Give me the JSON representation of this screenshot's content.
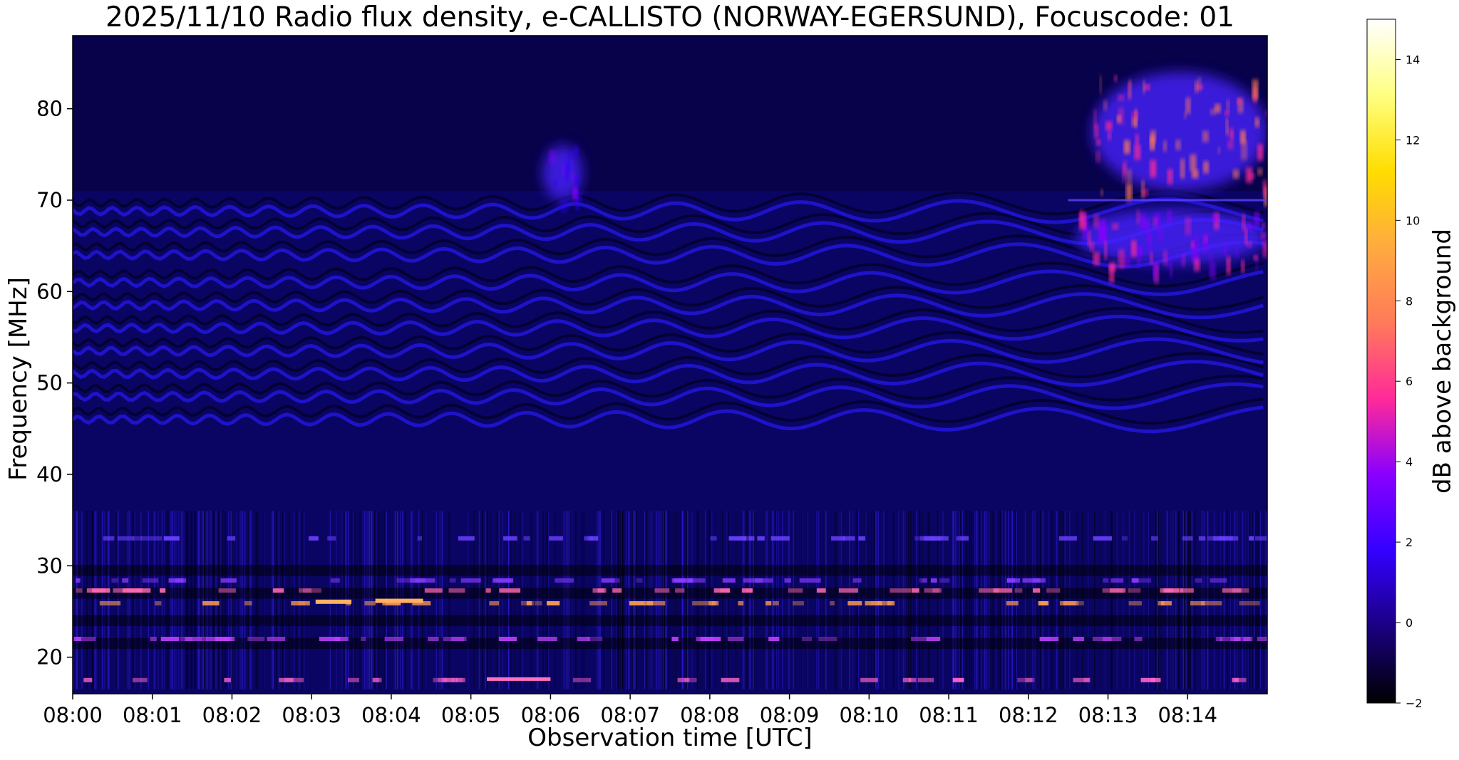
{
  "chart_data": {
    "type": "heatmap",
    "title": "2025/11/10  Radio flux density, e-CALLISTO (NORWAY-EGERSUND), Focuscode: 01",
    "xlabel": "Observation time [UTC]",
    "ylabel": "Frequency [MHz]",
    "x_ticks": [
      "08:00",
      "08:01",
      "08:02",
      "08:03",
      "08:04",
      "08:05",
      "08:06",
      "08:07",
      "08:08",
      "08:09",
      "08:10",
      "08:11",
      "08:12",
      "08:13",
      "08:14"
    ],
    "x_range_minutes": [
      0,
      15
    ],
    "y_ticks": [
      20,
      30,
      40,
      50,
      60,
      70,
      80
    ],
    "ylim": [
      16,
      88
    ],
    "colorbar": {
      "label": "dB above background",
      "ticks": [
        -2,
        0,
        2,
        4,
        6,
        8,
        10,
        12,
        14
      ],
      "range": [
        -2,
        15
      ],
      "colormap": "gnuplot2",
      "colors": [
        "#000000",
        "#1a0080",
        "#3300ff",
        "#8800ff",
        "#ff2a99",
        "#ff7a5a",
        "#ffaa40",
        "#ffdd00",
        "#ffff80",
        "#ffffff"
      ]
    },
    "features": [
      {
        "name": "bright burst upper band",
        "x_minutes": [
          12.8,
          15
        ],
        "freq": [
          71,
          84
        ],
        "level_db": 8
      },
      {
        "name": "bright burst lower band",
        "x_minutes": [
          12.6,
          15
        ],
        "freq": [
          63,
          69
        ],
        "level_db": 6
      },
      {
        "name": "faint patch",
        "x_minutes": [
          5.9,
          6.4
        ],
        "freq": [
          70,
          76
        ],
        "level_db": 3
      },
      {
        "name": "lower band interference",
        "x_minutes": [
          0,
          15
        ],
        "freq": [
          17,
          36
        ],
        "level_db": 4
      }
    ]
  }
}
